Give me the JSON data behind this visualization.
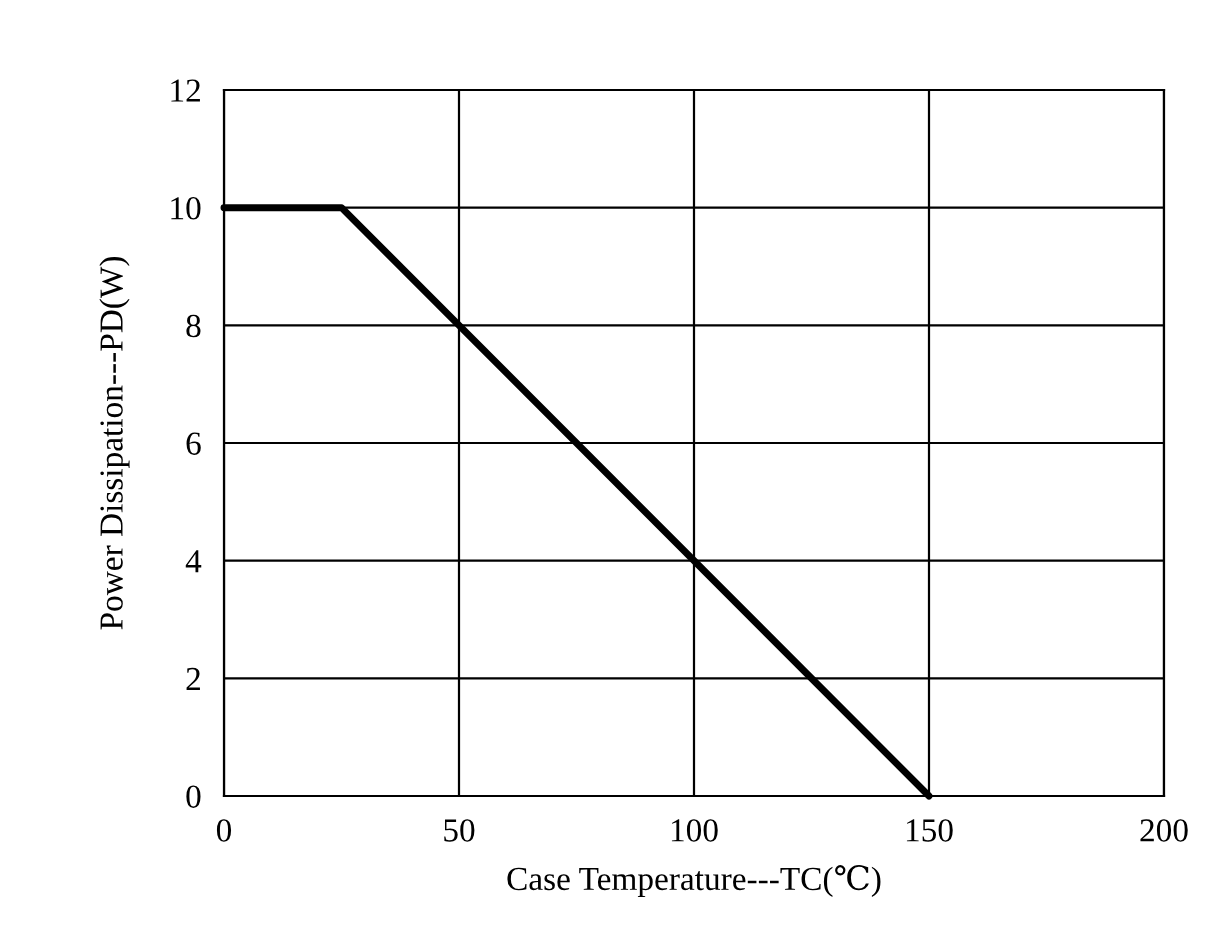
{
  "chart_data": {
    "type": "line",
    "xlabel": "Case Temperature---TC(℃)",
    "ylabel": "Power Dissipation---PD(W)",
    "series": [
      {
        "x": [
          0,
          25,
          150
        ],
        "values": [
          10,
          10,
          0
        ],
        "color": "#000000"
      }
    ],
    "xlim": [
      0,
      200
    ],
    "ylim": [
      0,
      12
    ],
    "xticks": [
      0,
      50,
      100,
      150,
      200
    ],
    "yticks": [
      0,
      2,
      4,
      6,
      8,
      10,
      12
    ],
    "grid": true,
    "marker": "none",
    "line_style": "solid"
  }
}
